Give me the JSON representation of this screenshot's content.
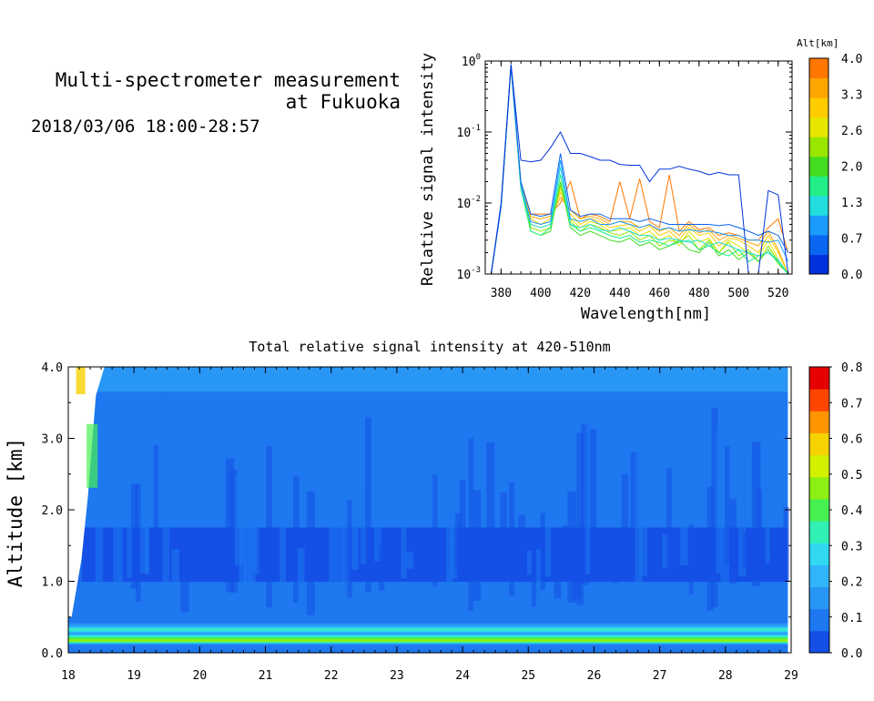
{
  "header": {
    "title_line1": "Multi-spectrometer measurement",
    "title_line2": "at Fukuoka",
    "datetime": "2018/03/06 18:00-28:57"
  },
  "colors": {
    "spectrum_alt": [
      "#0033dd",
      "#0a66f0",
      "#1a9cff",
      "#22dddd",
      "#22ee88",
      "#44dd22",
      "#99e600",
      "#e6e600",
      "#ffcc00",
      "#ffa500",
      "#ff7700"
    ],
    "heat": [
      "#1450e6",
      "#1e78f0",
      "#2896f5",
      "#30b4fa",
      "#30d8f0",
      "#30f0b4",
      "#46f050",
      "#8cf014",
      "#d2f000",
      "#f5d200",
      "#ff9600",
      "#ff4600",
      "#e60000"
    ]
  },
  "chart_data": [
    {
      "type": "line",
      "xlabel": "Wavelength[nm]",
      "ylabel": "Relative signal intensity",
      "xlim": [
        372,
        527
      ],
      "ylim": [
        0.001,
        1
      ],
      "yscale": "log",
      "xticks": [
        380,
        400,
        420,
        440,
        460,
        480,
        500,
        520
      ],
      "yticks": [
        {
          "v": 0.001,
          "base": "10",
          "exp": "-3"
        },
        {
          "v": 0.01,
          "base": "10",
          "exp": "-2"
        },
        {
          "v": 0.1,
          "base": "10",
          "exp": "-1"
        },
        {
          "v": 1,
          "base": "10",
          "exp": "0"
        }
      ],
      "colorbar": {
        "label": "Alt[km]",
        "ticks": [
          "4.0",
          "3.3",
          "2.6",
          "2.0",
          "1.3",
          "0.7",
          "0.0"
        ],
        "position": "right"
      },
      "x": [
        375,
        380,
        385,
        390,
        395,
        400,
        405,
        410,
        415,
        420,
        425,
        430,
        435,
        440,
        445,
        450,
        455,
        460,
        465,
        470,
        475,
        480,
        485,
        490,
        495,
        500,
        505,
        510,
        515,
        520,
        525
      ],
      "series": [
        {
          "alt": 0.0,
          "values": [
            0.001,
            0.01,
            0.9,
            0.04,
            0.038,
            0.04,
            0.06,
            0.1,
            0.05,
            0.05,
            0.045,
            0.04,
            0.04,
            0.035,
            0.034,
            0.034,
            0.02,
            0.03,
            0.03,
            0.033,
            0.03,
            0.028,
            0.025,
            0.027,
            0.025,
            0.025,
            0.001,
            0.001,
            0.015,
            0.013,
            0.001
          ]
        },
        {
          "alt": 0.5,
          "values": [
            0.001,
            0.009,
            0.88,
            0.02,
            0.007,
            0.0065,
            0.007,
            0.05,
            0.008,
            0.0065,
            0.007,
            0.007,
            0.006,
            0.006,
            0.006,
            0.0055,
            0.006,
            0.0055,
            0.005,
            0.005,
            0.005,
            0.005,
            0.005,
            0.0048,
            0.005,
            0.0045,
            0.004,
            0.0035,
            0.004,
            0.0035,
            0.002
          ]
        },
        {
          "alt": 0.9,
          "values": [
            0.001,
            0.009,
            0.87,
            0.018,
            0.0055,
            0.005,
            0.0055,
            0.04,
            0.006,
            0.0055,
            0.006,
            0.005,
            0.005,
            0.0055,
            0.005,
            0.0045,
            0.005,
            0.0042,
            0.0045,
            0.004,
            0.0042,
            0.004,
            0.004,
            0.0038,
            0.0035,
            0.0035,
            0.003,
            0.003,
            0.0028,
            0.003,
            0.0015
          ]
        },
        {
          "alt": 1.3,
          "values": [
            0.001,
            0.009,
            0.86,
            0.017,
            0.005,
            0.0045,
            0.005,
            0.032,
            0.005,
            0.0045,
            0.005,
            0.0042,
            0.004,
            0.0045,
            0.004,
            0.0035,
            0.0035,
            0.003,
            0.0032,
            0.003,
            0.0028,
            0.003,
            0.0025,
            0.0028,
            0.0025,
            0.0022,
            0.002,
            0.0018,
            0.002,
            0.0016,
            0.001
          ]
        },
        {
          "alt": 1.6,
          "values": [
            0.001,
            0.009,
            0.86,
            0.016,
            0.004,
            0.0035,
            0.0045,
            0.025,
            0.005,
            0.004,
            0.0045,
            0.004,
            0.0035,
            0.0032,
            0.0035,
            0.0028,
            0.003,
            0.0028,
            0.0025,
            0.0028,
            0.003,
            0.0022,
            0.0025,
            0.002,
            0.0018,
            0.0022,
            0.0015,
            0.0018,
            0.002,
            0.0015,
            0.001
          ]
        },
        {
          "alt": 2.0,
          "values": [
            0.001,
            0.009,
            0.85,
            0.016,
            0.004,
            0.0035,
            0.004,
            0.02,
            0.0045,
            0.0035,
            0.004,
            0.0035,
            0.003,
            0.0028,
            0.0032,
            0.0025,
            0.0028,
            0.0022,
            0.0025,
            0.003,
            0.0022,
            0.002,
            0.0028,
            0.0018,
            0.0022,
            0.0016,
            0.002,
            0.0015,
            0.0022,
            0.0014,
            0.001
          ]
        },
        {
          "alt": 2.3,
          "values": [
            0.001,
            0.009,
            0.85,
            0.017,
            0.0045,
            0.004,
            0.0045,
            0.018,
            0.0055,
            0.004,
            0.005,
            0.0045,
            0.0038,
            0.0035,
            0.004,
            0.003,
            0.0035,
            0.0025,
            0.003,
            0.0028,
            0.0035,
            0.0022,
            0.003,
            0.002,
            0.0028,
            0.0018,
            0.0022,
            0.0015,
            0.0025,
            0.0015,
            0.001
          ]
        },
        {
          "alt": 2.6,
          "values": [
            0.001,
            0.009,
            0.85,
            0.018,
            0.005,
            0.0045,
            0.005,
            0.016,
            0.006,
            0.0045,
            0.0055,
            0.005,
            0.004,
            0.0042,
            0.0045,
            0.0035,
            0.004,
            0.003,
            0.0035,
            0.0025,
            0.004,
            0.0028,
            0.0032,
            0.002,
            0.003,
            0.0025,
            0.002,
            0.0018,
            0.003,
            0.0016,
            0.001
          ]
        },
        {
          "alt": 3.0,
          "values": [
            0.001,
            0.009,
            0.84,
            0.018,
            0.006,
            0.005,
            0.006,
            0.014,
            0.007,
            0.005,
            0.006,
            0.0055,
            0.0045,
            0.0048,
            0.005,
            0.004,
            0.0048,
            0.0035,
            0.004,
            0.003,
            0.0045,
            0.0035,
            0.0038,
            0.0025,
            0.0032,
            0.003,
            0.0025,
            0.002,
            0.0035,
            0.002,
            0.001
          ]
        },
        {
          "alt": 3.5,
          "values": [
            0.001,
            0.009,
            0.84,
            0.019,
            0.0065,
            0.006,
            0.0065,
            0.012,
            0.008,
            0.006,
            0.0065,
            0.006,
            0.005,
            0.0055,
            0.0055,
            0.0045,
            0.005,
            0.004,
            0.0045,
            0.0035,
            0.005,
            0.0038,
            0.0042,
            0.003,
            0.0035,
            0.0032,
            0.0028,
            0.0025,
            0.004,
            0.0022,
            0.001
          ]
        },
        {
          "alt": 4.0,
          "values": [
            0.001,
            0.009,
            0.84,
            0.02,
            0.007,
            0.007,
            0.007,
            0.01,
            0.02,
            0.006,
            0.007,
            0.0065,
            0.0055,
            0.02,
            0.006,
            0.022,
            0.0055,
            0.0045,
            0.025,
            0.004,
            0.0055,
            0.0042,
            0.0045,
            0.0035,
            0.0038,
            0.0035,
            0.003,
            0.003,
            0.0045,
            0.006,
            0.002
          ]
        }
      ]
    },
    {
      "type": "heatmap",
      "title": "Total relative signal intensity at 420-510nm",
      "xlabel": "",
      "ylabel": "Altitude [km]",
      "xlim": [
        18,
        29
      ],
      "ylim": [
        0,
        4
      ],
      "xticks": [
        "18",
        "19",
        "20",
        "21",
        "22",
        "23",
        "24",
        "25",
        "26",
        "27",
        "28",
        "29"
      ],
      "yticks": [
        "0.0",
        "1.0",
        "2.0",
        "3.0",
        "4.0"
      ],
      "data_x_end": 28.95,
      "colorbar": {
        "ticks": [
          "0.8",
          "0.7",
          "0.6",
          "0.5",
          "0.4",
          "0.3",
          "0.2",
          "0.1",
          "0.0"
        ],
        "range": [
          0,
          0.8
        ],
        "position": "right"
      },
      "profile": [
        {
          "alt": 0.0,
          "value": 0.06
        },
        {
          "alt": 0.12,
          "value": 0.1
        },
        {
          "alt": 0.18,
          "value": 0.52
        },
        {
          "alt": 0.22,
          "value": 0.4
        },
        {
          "alt": 0.27,
          "value": 0.15
        },
        {
          "alt": 0.33,
          "value": 0.32
        },
        {
          "alt": 0.38,
          "value": 0.2
        },
        {
          "alt": 0.45,
          "value": 0.08
        },
        {
          "alt": 0.7,
          "value": 0.12
        },
        {
          "alt": 1.0,
          "value": 0.06
        },
        {
          "alt": 1.5,
          "value": 0.05
        },
        {
          "alt": 2.2,
          "value": 0.08
        },
        {
          "alt": 3.0,
          "value": 0.1
        },
        {
          "alt": 3.6,
          "value": 0.12
        },
        {
          "alt": 4.0,
          "value": 0.14
        }
      ]
    }
  ]
}
